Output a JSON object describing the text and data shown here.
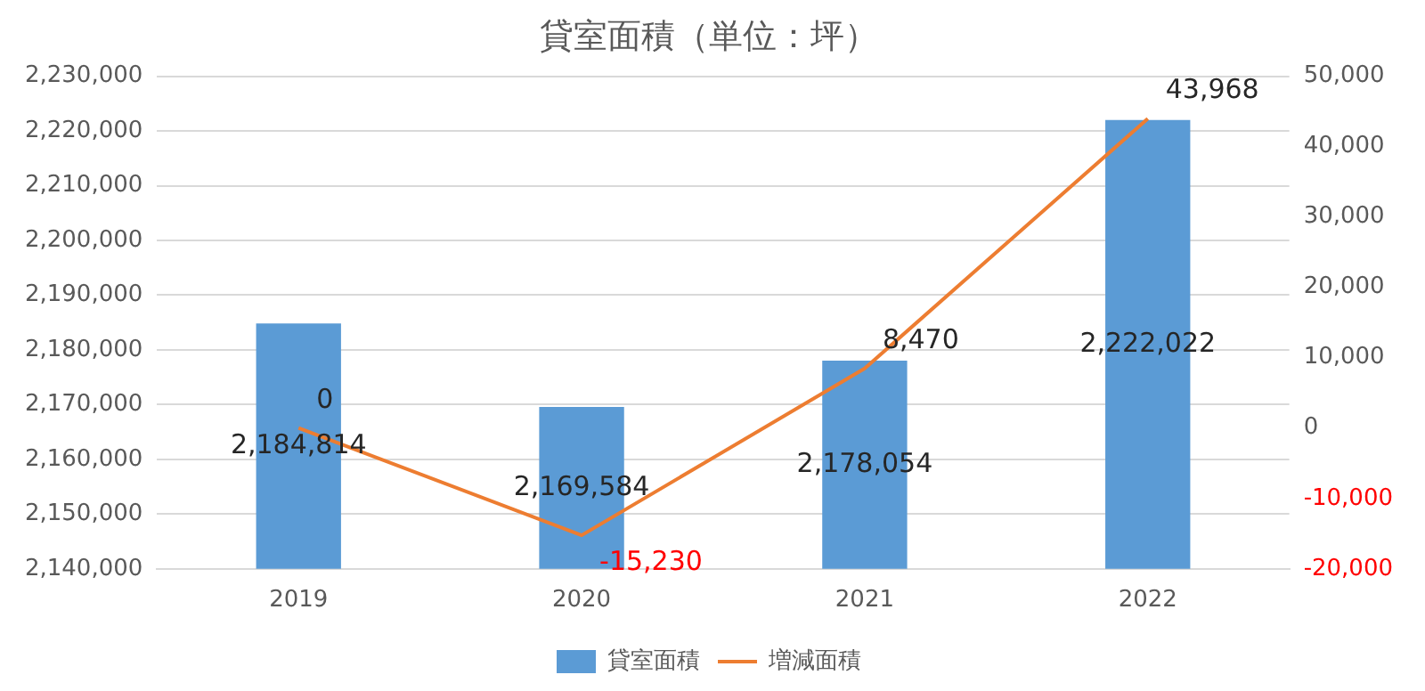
{
  "chart_data": {
    "type": "bar",
    "title": "貸室面積（単位：坪）",
    "categories": [
      "2019",
      "2020",
      "2021",
      "2022"
    ],
    "series": [
      {
        "name": "貸室面積",
        "color": "#5b9bd5",
        "values": [
          2184814,
          2169584,
          2178054,
          2222022
        ],
        "value_labels": [
          "2,184,814",
          "2,169,584",
          "2,178,054",
          "2,222,022"
        ]
      },
      {
        "name": "増減面積",
        "type": "line",
        "axis": "y2",
        "color": "#ed7d31",
        "values": [
          0,
          -15230,
          8470,
          43968
        ],
        "value_labels": [
          "0",
          "-15,230",
          "8,470",
          "43,968"
        ]
      }
    ],
    "ylim": [
      2140000,
      2230000
    ],
    "yticks": [
      {
        "value": 2140000,
        "label": "2,140,000"
      },
      {
        "value": 2150000,
        "label": "2,150,000"
      },
      {
        "value": 2160000,
        "label": "2,160,000"
      },
      {
        "value": 2170000,
        "label": "2,170,000"
      },
      {
        "value": 2180000,
        "label": "2,180,000"
      },
      {
        "value": 2190000,
        "label": "2,190,000"
      },
      {
        "value": 2200000,
        "label": "2,200,000"
      },
      {
        "value": 2210000,
        "label": "2,210,000"
      },
      {
        "value": 2220000,
        "label": "2,220,000"
      },
      {
        "value": 2230000,
        "label": "2,230,000"
      }
    ],
    "y2lim": [
      -20000,
      50000
    ],
    "y2ticks": [
      {
        "value": -20000,
        "label": "-20,000"
      },
      {
        "value": -10000,
        "label": "-10,000"
      },
      0,
      {
        "value": 10000,
        "label": "10,000"
      },
      {
        "value": 20000,
        "label": "20,000"
      },
      {
        "value": 30000,
        "label": "30,000"
      },
      {
        "value": 40000,
        "label": "40,000"
      },
      {
        "value": 50000,
        "label": "50,000"
      }
    ],
    "grid": "y",
    "legend": "bottom",
    "marker": "none",
    "line_style": "solid"
  }
}
